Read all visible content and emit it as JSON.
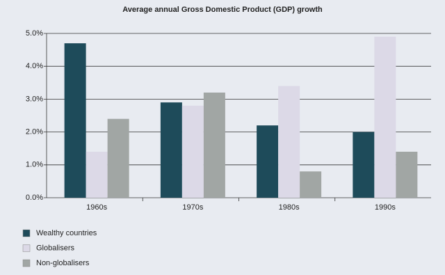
{
  "chart_data": {
    "type": "bar",
    "title": "Average annual Gross Domestic Product (GDP) growth",
    "categories": [
      "1960s",
      "1970s",
      "1980s",
      "1990s"
    ],
    "series": [
      {
        "name": "Wealthy countries",
        "color": "#1e4b5a",
        "values": [
          4.7,
          2.9,
          2.2,
          2.0
        ]
      },
      {
        "name": "Globalisers",
        "color": "#dcd9e7",
        "values": [
          1.4,
          2.8,
          3.4,
          4.9
        ]
      },
      {
        "name": "Non-globalisers",
        "color": "#a1a6a4",
        "values": [
          2.4,
          3.2,
          0.8,
          1.4
        ]
      }
    ],
    "ylim": [
      0,
      5
    ],
    "yticks": [
      {
        "value": 0,
        "label": "0.0%"
      },
      {
        "value": 1,
        "label": "1.0%"
      },
      {
        "value": 2,
        "label": "2.0%"
      },
      {
        "value": 3,
        "label": "3.0%"
      },
      {
        "value": 4,
        "label": "4.0%"
      },
      {
        "value": 5,
        "label": "5.0%"
      }
    ],
    "grid": true
  }
}
